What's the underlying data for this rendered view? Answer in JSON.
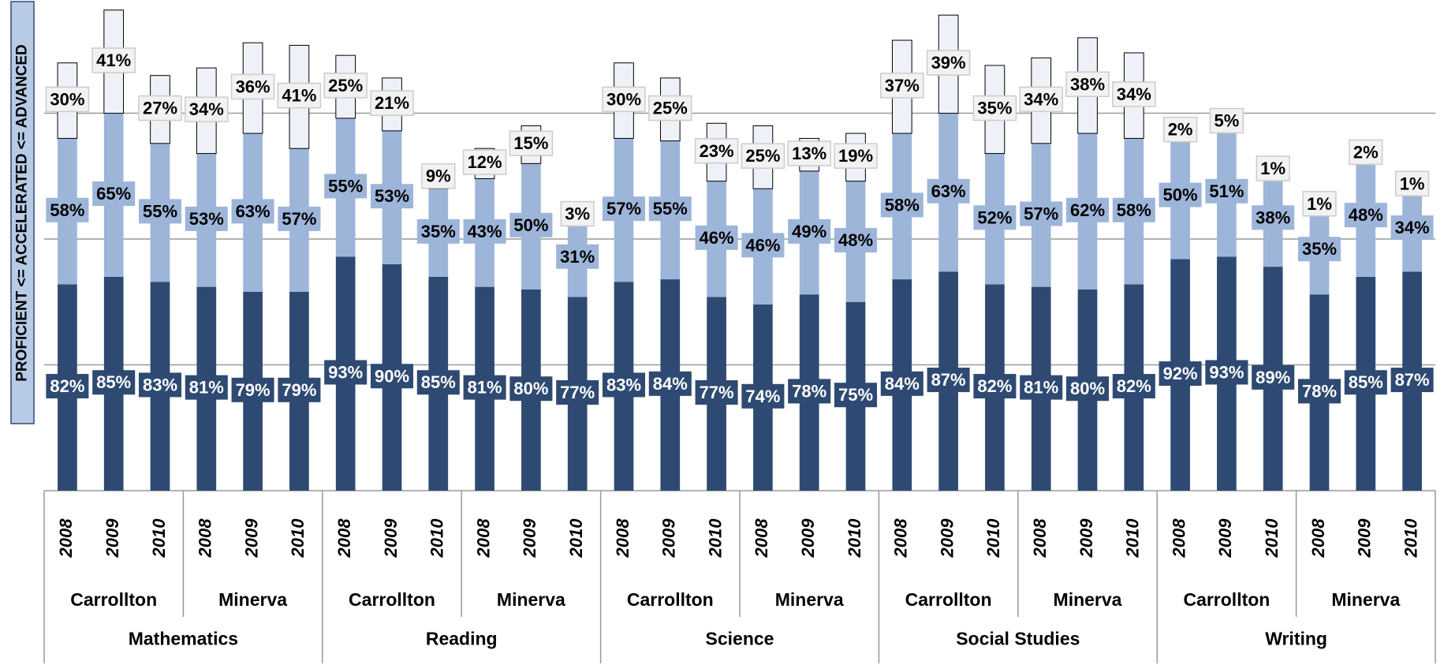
{
  "chart_data": {
    "type": "stacked-bar",
    "y_label": "PROFICIENT <= ACCELERATED <= ADVANCED",
    "subjects": [
      {
        "name": "Mathematics",
        "districts": [
          {
            "name": "Carrollton",
            "years": [
              "2008",
              "2009",
              "2010"
            ]
          },
          {
            "name": "Minerva",
            "years": [
              "2008",
              "2009",
              "2010"
            ]
          }
        ]
      },
      {
        "name": "Reading",
        "districts": [
          {
            "name": "Carrollton",
            "years": [
              "2008",
              "2009",
              "2010"
            ]
          },
          {
            "name": "Minerva",
            "years": [
              "2008",
              "2009",
              "2010"
            ]
          }
        ]
      },
      {
        "name": "Science",
        "districts": [
          {
            "name": "Carrollton",
            "years": [
              "2008",
              "2009",
              "2010"
            ]
          },
          {
            "name": "Minerva",
            "years": [
              "2008",
              "2009",
              "2010"
            ]
          }
        ]
      },
      {
        "name": "Social Studies",
        "districts": [
          {
            "name": "Carrollton",
            "years": [
              "2008",
              "2009",
              "2010"
            ]
          },
          {
            "name": "Minerva",
            "years": [
              "2008",
              "2009",
              "2010"
            ]
          }
        ]
      },
      {
        "name": "Writing",
        "districts": [
          {
            "name": "Carrollton",
            "years": [
              "2008",
              "2009",
              "2010"
            ]
          },
          {
            "name": "Minerva",
            "years": [
              "2008",
              "2009",
              "2010"
            ]
          }
        ]
      }
    ],
    "series": [
      {
        "color": "#2e4a72",
        "label_color": "#ffffff",
        "values": [
          82,
          85,
          83,
          81,
          79,
          79,
          93,
          90,
          85,
          81,
          80,
          77,
          83,
          84,
          77,
          74,
          78,
          75,
          84,
          87,
          82,
          81,
          80,
          82,
          92,
          93,
          89,
          78,
          85,
          87
        ],
        "value_labels": [
          "82%",
          "85%",
          "83%",
          "81%",
          "79%",
          "79%",
          "93%",
          "90%",
          "85%",
          "81%",
          "80%",
          "77%",
          "83%",
          "84%",
          "77%",
          "74%",
          "78%",
          "75%",
          "84%",
          "87%",
          "82%",
          "81%",
          "80%",
          "82%",
          "92%",
          "93%",
          "89%",
          "78%",
          "85%",
          "87%"
        ]
      },
      {
        "color": "#9db5d9",
        "label_color": "#000000",
        "values": [
          58,
          65,
          55,
          53,
          63,
          57,
          55,
          53,
          35,
          43,
          50,
          31,
          57,
          55,
          46,
          46,
          49,
          48,
          58,
          63,
          52,
          57,
          62,
          58,
          50,
          51,
          38,
          35,
          48,
          34
        ],
        "value_labels": [
          "58%",
          "65%",
          "55%",
          "53%",
          "63%",
          "57%",
          "55%",
          "53%",
          "35%",
          "43%",
          "50%",
          "31%",
          "57%",
          "55%",
          "46%",
          "46%",
          "49%",
          "48%",
          "58%",
          "63%",
          "52%",
          "57%",
          "62%",
          "58%",
          "50%",
          "51%",
          "38%",
          "35%",
          "48%",
          "34%"
        ]
      },
      {
        "color": "#eef2f8",
        "label_color": "#000000",
        "values": [
          30,
          41,
          27,
          34,
          36,
          41,
          25,
          21,
          9,
          12,
          15,
          3,
          30,
          25,
          23,
          25,
          13,
          19,
          37,
          39,
          35,
          34,
          38,
          34,
          2,
          5,
          1,
          1,
          2,
          1
        ],
        "value_labels": [
          "30%",
          "41%",
          "27%",
          "34%",
          "36%",
          "41%",
          "25%",
          "21%",
          "9%",
          "12%",
          "15%",
          "3%",
          "30%",
          "25%",
          "23%",
          "25%",
          "13%",
          "19%",
          "37%",
          "39%",
          "35%",
          "34%",
          "38%",
          "34%",
          "2%",
          "5%",
          "1%",
          "1%",
          "2%",
          "1%"
        ]
      }
    ],
    "ylim": [
      0,
      195
    ],
    "grid_lines": [
      50,
      100,
      150
    ],
    "grid": true
  }
}
